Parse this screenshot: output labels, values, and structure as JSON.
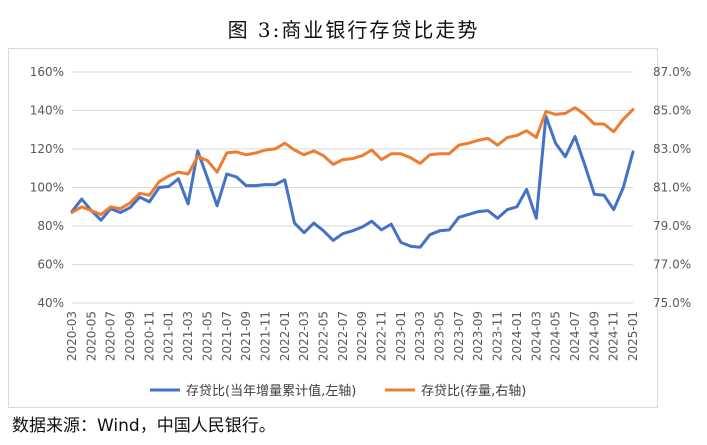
{
  "title": "图 3:商业银行存贷比走势",
  "source": "数据来源：Wind，中国人民银行。",
  "chart_data": {
    "type": "line",
    "y_left": {
      "ticks": [
        40,
        60,
        80,
        100,
        120,
        140,
        160
      ],
      "tick_labels": [
        "40%",
        "60%",
        "80%",
        "100%",
        "120%",
        "140%",
        "160%"
      ],
      "range": [
        40,
        160
      ]
    },
    "y_right": {
      "ticks": [
        75.0,
        77.0,
        79.0,
        81.0,
        83.0,
        85.0,
        87.0
      ],
      "tick_labels": [
        "75.0%",
        "77.0%",
        "79.0%",
        "81.0%",
        "83.0%",
        "85.0%",
        "87.0%"
      ],
      "range": [
        75.0,
        87.0
      ]
    },
    "x_tick_labels": [
      "2020-03",
      "2020-05",
      "2020-07",
      "2020-09",
      "2020-11",
      "2021-01",
      "2021-03",
      "2021-05",
      "2021-07",
      "2021-09",
      "2021-11",
      "2022-01",
      "2022-03",
      "2022-05",
      "2022-07",
      "2022-09",
      "2022-11",
      "2023-01",
      "2023-03",
      "2023-05",
      "2023-07",
      "2023-09",
      "2023-11",
      "2024-01",
      "2024-03",
      "2024-05",
      "2024-07",
      "2024-09",
      "2024-11",
      "2025-01"
    ],
    "months": [
      "2020-03",
      "2020-04",
      "2020-05",
      "2020-06",
      "2020-07",
      "2020-08",
      "2020-09",
      "2020-10",
      "2020-11",
      "2020-12",
      "2021-01",
      "2021-02",
      "2021-03",
      "2021-04",
      "2021-05",
      "2021-06",
      "2021-07",
      "2021-08",
      "2021-09",
      "2021-10",
      "2021-11",
      "2021-12",
      "2022-01",
      "2022-02",
      "2022-03",
      "2022-04",
      "2022-05",
      "2022-06",
      "2022-07",
      "2022-08",
      "2022-09",
      "2022-10",
      "2022-11",
      "2022-12",
      "2023-01",
      "2023-02",
      "2023-03",
      "2023-04",
      "2023-05",
      "2023-06",
      "2023-07",
      "2023-08",
      "2023-09",
      "2023-10",
      "2023-11",
      "2023-12",
      "2024-01",
      "2024-02",
      "2024-03",
      "2024-04",
      "2024-05",
      "2024-06",
      "2024-07",
      "2024-08",
      "2024-09",
      "2024-10",
      "2024-11",
      "2024-12",
      "2025-01"
    ],
    "series": [
      {
        "name": "存贷比(当年增量累计值,左轴)",
        "axis": "left",
        "color": "#4472c4",
        "values": [
          87.5,
          94,
          88,
          83,
          89,
          87,
          89.5,
          95,
          92.5,
          100,
          100.5,
          104.5,
          91.5,
          119,
          105,
          90.5,
          107,
          105.5,
          101,
          101,
          101.5,
          101.5,
          104,
          81.5,
          76.5,
          81.5,
          77.5,
          72.5,
          76,
          77.5,
          79.5,
          82.5,
          78,
          81,
          71.5,
          69.5,
          69,
          75.5,
          77.5,
          78,
          84.5,
          86,
          87.5,
          88,
          84,
          88.5,
          90,
          99,
          84,
          137,
          123,
          116,
          126.5,
          112,
          96.5,
          96,
          88.5,
          100,
          118.5
        ]
      },
      {
        "name": "存贷比(存量,右轴)",
        "axis": "right",
        "color": "#ed7d31",
        "values": [
          79.7,
          80.0,
          79.8,
          79.6,
          80.0,
          79.9,
          80.2,
          80.7,
          80.6,
          81.3,
          81.6,
          81.8,
          81.7,
          82.6,
          82.4,
          81.8,
          82.8,
          82.85,
          82.7,
          82.8,
          82.95,
          83.0,
          83.3,
          82.95,
          82.7,
          82.9,
          82.65,
          82.2,
          82.45,
          82.5,
          82.65,
          82.95,
          82.45,
          82.75,
          82.75,
          82.55,
          82.25,
          82.7,
          82.75,
          82.75,
          83.2,
          83.3,
          83.45,
          83.55,
          83.2,
          83.6,
          83.7,
          83.95,
          83.6,
          84.95,
          84.8,
          84.85,
          85.15,
          84.8,
          84.3,
          84.3,
          83.9,
          84.55,
          85.05
        ]
      }
    ],
    "legend_position": "bottom",
    "grid": true
  }
}
